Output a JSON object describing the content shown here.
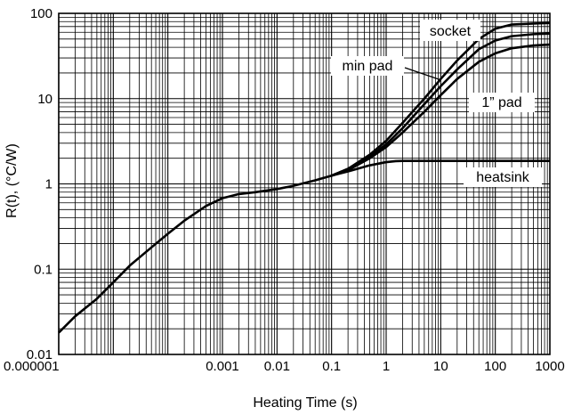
{
  "chart_data": {
    "type": "line",
    "xlabel": "Heating Time (s)",
    "ylabel": "R(t), (°C/W)",
    "x_scale": "log",
    "y_scale": "log",
    "xlim": [
      1e-06,
      1000
    ],
    "ylim": [
      0.01,
      100
    ],
    "grid": true,
    "x_tick_labels": [
      {
        "value": 1e-06,
        "label": "0.000001"
      },
      {
        "value": 0.001,
        "label": "0.001"
      },
      {
        "value": 0.01,
        "label": "0.01"
      },
      {
        "value": 0.1,
        "label": "0.1"
      },
      {
        "value": 1,
        "label": "1"
      },
      {
        "value": 10,
        "label": "10"
      },
      {
        "value": 100,
        "label": "100"
      },
      {
        "value": 1000,
        "label": "1000"
      }
    ],
    "y_tick_labels": [
      {
        "value": 0.01,
        "label": "0.01"
      },
      {
        "value": 0.1,
        "label": "0.1"
      },
      {
        "value": 1,
        "label": "1"
      },
      {
        "value": 10,
        "label": "10"
      },
      {
        "value": 100,
        "label": "100"
      }
    ],
    "common": {
      "x": [
        1e-06,
        2e-06,
        5e-06,
        1e-05,
        2e-05,
        5e-05,
        0.0001,
        0.0002,
        0.0005,
        0.001,
        0.002,
        0.004,
        0.01,
        0.02,
        0.05,
        0.1
      ],
      "y": [
        0.018,
        0.028,
        0.045,
        0.07,
        0.11,
        0.18,
        0.26,
        0.37,
        0.55,
        0.68,
        0.76,
        0.8,
        0.87,
        0.95,
        1.1,
        1.25
      ]
    },
    "series": [
      {
        "name": "socket",
        "x": [
          0.2,
          0.5,
          1,
          2,
          5,
          10,
          20,
          50,
          100,
          200,
          500,
          1000
        ],
        "y": [
          1.5,
          2.2,
          3.2,
          5.2,
          10,
          17,
          28,
          50,
          66,
          74,
          76,
          77
        ]
      },
      {
        "name": "min pad",
        "x": [
          0.2,
          0.5,
          1,
          2,
          5,
          10,
          20,
          50,
          100,
          200,
          500,
          1000
        ],
        "y": [
          1.5,
          2.1,
          2.9,
          4.5,
          8.6,
          14,
          22,
          38,
          48,
          54,
          57,
          58
        ]
      },
      {
        "name": "1” pad",
        "x": [
          0.2,
          0.5,
          1,
          2,
          5,
          10,
          20,
          50,
          100,
          200,
          500,
          1000
        ],
        "y": [
          1.45,
          2.0,
          2.7,
          4.0,
          7.0,
          11,
          17,
          27,
          34,
          39,
          42,
          43
        ]
      },
      {
        "name": "heatsink",
        "x": [
          0.2,
          0.5,
          1,
          1.5,
          2,
          5,
          10,
          100,
          1000
        ],
        "y": [
          1.4,
          1.65,
          1.8,
          1.85,
          1.86,
          1.86,
          1.86,
          1.86,
          1.86
        ]
      }
    ],
    "annotations": [
      {
        "text": "socket",
        "series": "socket"
      },
      {
        "text": "min pad",
        "series": "min pad"
      },
      {
        "text": "1” pad",
        "series": "1” pad"
      },
      {
        "text": "heatsink",
        "series": "heatsink"
      }
    ]
  }
}
